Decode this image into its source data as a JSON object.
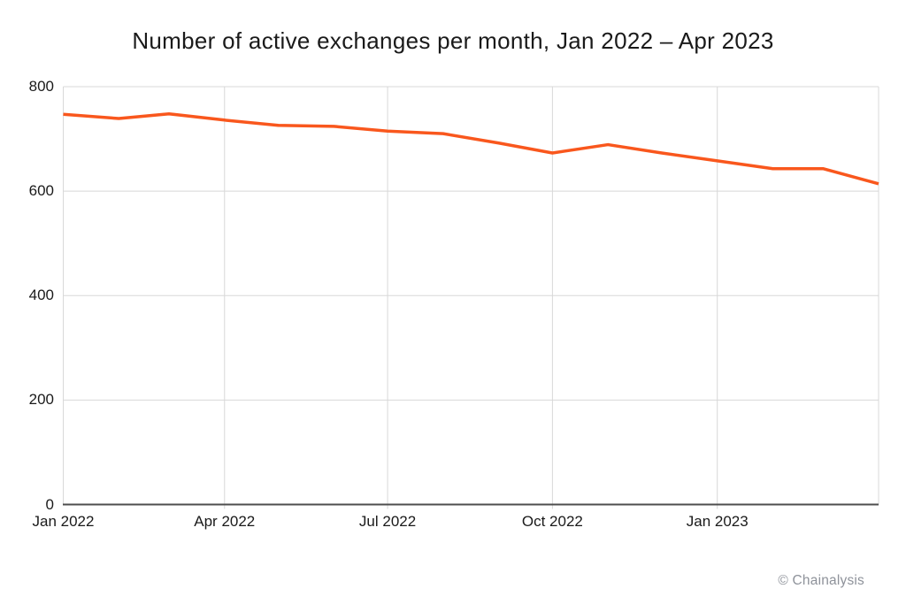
{
  "chart_data": {
    "type": "line",
    "title": "Number of active exchanges per month, Jan 2022 – Apr 2023",
    "categories": [
      "Jan 2022",
      "Feb 2022",
      "Mar 2022",
      "Apr 2022",
      "May 2022",
      "Jun 2022",
      "Jul 2022",
      "Aug 2022",
      "Sep 2022",
      "Oct 2022",
      "Nov 2022",
      "Dec 2022",
      "Jan 2023",
      "Feb 2023",
      "Mar 2023",
      "Apr 2023"
    ],
    "x_dates": [
      "2022-01-01",
      "2022-02-01",
      "2022-03-01",
      "2022-04-01",
      "2022-05-01",
      "2022-06-01",
      "2022-07-01",
      "2022-08-01",
      "2022-09-01",
      "2022-10-01",
      "2022-11-01",
      "2022-12-01",
      "2023-01-01",
      "2023-02-01",
      "2023-03-01",
      "2023-04-01"
    ],
    "series": [
      {
        "name": "Active exchanges per month",
        "values": [
          747,
          739,
          748,
          736,
          726,
          724,
          715,
          710,
          692,
          673,
          689,
          673,
          658,
          643,
          643,
          614
        ]
      }
    ],
    "xlabel": "",
    "ylabel": "",
    "ylim": [
      0,
      800
    ],
    "yticks": [
      0,
      200,
      400,
      600,
      800
    ],
    "xticks": [
      {
        "label": "Jan 2022",
        "date": "2022-01-01"
      },
      {
        "label": "Apr 2022",
        "date": "2022-04-01"
      },
      {
        "label": "Jul 2022",
        "date": "2022-07-01"
      },
      {
        "label": "Oct 2022",
        "date": "2022-10-01"
      },
      {
        "label": "Jan 2023",
        "date": "2023-01-01"
      }
    ],
    "grid": true,
    "legend_position": "none",
    "line_color": "#F9571D",
    "grid_color": "#D8D8D8",
    "axis_color": "#4D4D4D",
    "text_color": "#1A1A1A"
  },
  "footer": {
    "credit": "© Chainalysis",
    "color": "#8E929A"
  }
}
